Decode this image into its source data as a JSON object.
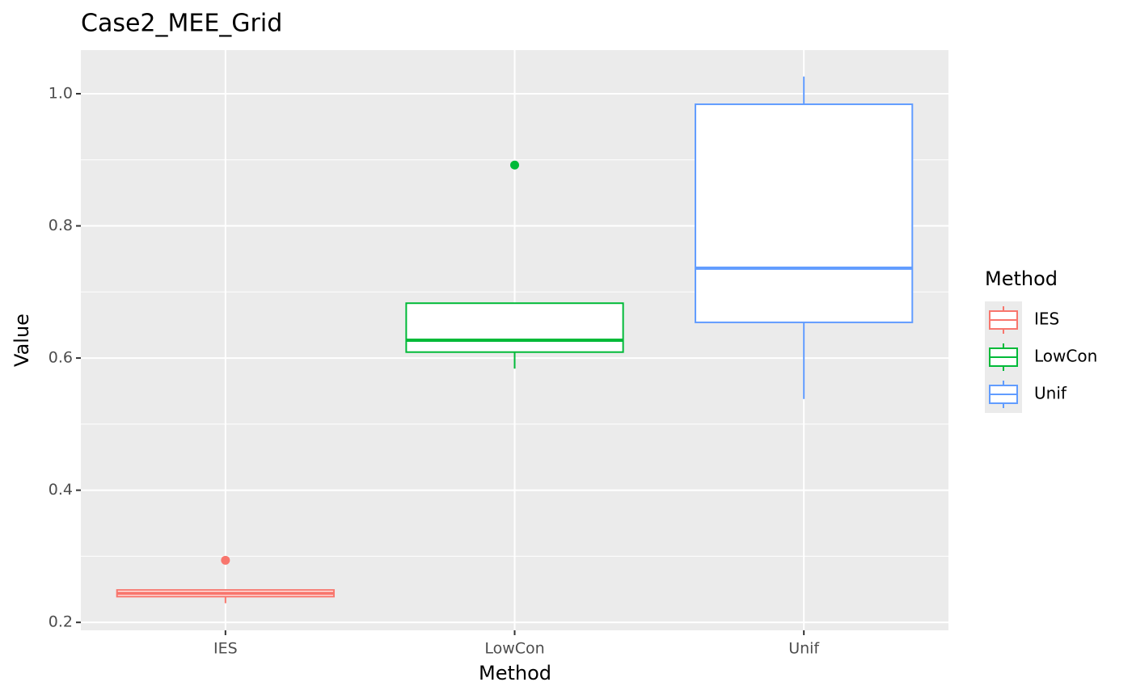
{
  "chart_data": {
    "type": "box",
    "title": "Case2_MEE_Grid",
    "x_label": "Method",
    "y_label": "Value",
    "categories": [
      "IES",
      "LowCon",
      "Unif"
    ],
    "ylim": [
      0.188,
      1.066
    ],
    "yticks": [
      0.2,
      0.4,
      0.6,
      0.8,
      {
        "value": 1.0,
        "label": "1.0"
      }
    ],
    "minor_yticks": [
      0.3,
      0.5,
      0.7,
      0.9
    ],
    "grid": true,
    "legend_title": "Method",
    "legend_position": "right",
    "series": [
      {
        "name": "IES",
        "color": "#f8766d",
        "whisker_low": 0.229,
        "q1": 0.239,
        "median": 0.244,
        "q3": 0.249,
        "whisker_high": 0.249,
        "outliers": [
          0.294
        ]
      },
      {
        "name": "LowCon",
        "color": "#00ba38",
        "whisker_low": 0.584,
        "q1": 0.609,
        "median": 0.627,
        "q3": 0.683,
        "whisker_high": 0.683,
        "outliers": [
          0.892
        ]
      },
      {
        "name": "Unif",
        "color": "#619cff",
        "whisker_low": 0.538,
        "q1": 0.654,
        "median": 0.736,
        "q3": 0.984,
        "whisker_high": 1.026,
        "outliers": []
      }
    ]
  }
}
